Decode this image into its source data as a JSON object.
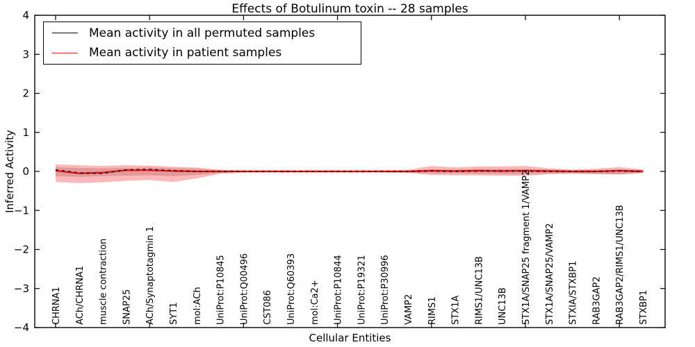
{
  "title": "Effects of Botulinum toxin -- 28 samples",
  "axes": {
    "x_label": "Cellular Entities",
    "y_label": "Inferred Activity",
    "y_tick_labels": [
      "4",
      "3",
      "2",
      "1",
      "0",
      "−1",
      "−2",
      "−3",
      "−4"
    ],
    "y_tick_values": [
      4,
      3,
      2,
      1,
      0,
      -1,
      -2,
      -3,
      -4
    ]
  },
  "legend": {
    "items": [
      {
        "label": "Mean activity in all permuted samples",
        "color": "#000000"
      },
      {
        "label": "Mean activity in patient samples",
        "color": "#ff0000"
      }
    ]
  },
  "chart_data": {
    "type": "line",
    "title": "Effects of Botulinum toxin -- 28 samples",
    "xlabel": "Cellular Entities",
    "ylabel": "Inferred Activity",
    "ylim": [
      -4,
      4
    ],
    "grid": false,
    "legend_position": "upper left",
    "categories": [
      "CHRNA1",
      "ACh/CHRNA1",
      "muscle contraction",
      "SNAP25",
      "ACh/Synaptotagmin 1",
      "SYT1",
      "mol:ACh",
      "UniProt:P10845",
      "UniProt:Q00496",
      "CST086",
      "UniProt:Q60393",
      "mol:Ca2+",
      "UniProt:P10844",
      "UniProt:P19321",
      "UniProt:P30996",
      "VAMP2",
      "RIMS1",
      "STX1A",
      "RIMS1/UNC13B",
      "UNC13B",
      "STX1A/SNAP25 fragment 1/VAMP2",
      "STX1A/SNAP25/VAMP2",
      "STXIA/STXBP1",
      "RAB3GAP2",
      "RAB3GAP2/RIMS1/UNC13B",
      "STXBP1"
    ],
    "x_major_tick_indices": [
      0,
      4,
      8,
      12,
      16,
      20,
      24
    ],
    "series": [
      {
        "name": "Mean activity in all permuted samples",
        "color": "#000000",
        "style": "dashed",
        "values": [
          0.04,
          -0.04,
          -0.05,
          0.04,
          0.05,
          0.02,
          0.0,
          0.0,
          0.0,
          0.0,
          0.0,
          0.0,
          0.0,
          0.0,
          0.0,
          0.0,
          0.01,
          0.0,
          0.01,
          0.01,
          0.01,
          0.0,
          0.0,
          0.0,
          0.01,
          0.0
        ]
      },
      {
        "name": "Mean activity in patient samples",
        "color": "#ff0000",
        "style": "solid",
        "values": [
          0.02,
          -0.05,
          -0.03,
          0.03,
          0.03,
          0.01,
          0.0,
          0.0,
          0.0,
          0.0,
          0.0,
          0.0,
          0.0,
          0.0,
          0.0,
          0.0,
          0.02,
          0.01,
          0.02,
          0.01,
          0.02,
          0.01,
          0.0,
          0.0,
          0.02,
          0.0
        ]
      }
    ],
    "bands": [
      {
        "name": "permuted-samples-range",
        "color": "#000000",
        "opacity": 0.16,
        "upper": [
          0.11,
          0.09,
          0.08,
          0.09,
          0.1,
          0.08,
          0.07,
          0.03,
          0.02,
          0.02,
          0.02,
          0.02,
          0.02,
          0.02,
          0.02,
          0.03,
          0.05,
          0.05,
          0.06,
          0.06,
          0.06,
          0.05,
          0.04,
          0.04,
          0.05,
          0.04
        ],
        "lower": [
          -0.12,
          -0.14,
          -0.12,
          -0.11,
          -0.1,
          -0.12,
          -0.09,
          -0.04,
          -0.02,
          -0.02,
          -0.02,
          -0.02,
          -0.02,
          -0.02,
          -0.02,
          -0.03,
          -0.05,
          -0.05,
          -0.06,
          -0.06,
          -0.07,
          -0.05,
          -0.06,
          -0.07,
          -0.07,
          -0.04
        ]
      },
      {
        "name": "patient-samples-range",
        "color": "#ff0000",
        "opacity": 0.28,
        "upper": [
          0.18,
          0.16,
          0.14,
          0.16,
          0.15,
          0.12,
          0.1,
          0.04,
          0.03,
          0.03,
          0.03,
          0.03,
          0.03,
          0.03,
          0.03,
          0.04,
          0.14,
          0.1,
          0.13,
          0.13,
          0.14,
          0.08,
          0.04,
          0.07,
          0.11,
          0.05
        ],
        "lower": [
          -0.27,
          -0.3,
          -0.28,
          -0.24,
          -0.22,
          -0.27,
          -0.18,
          -0.06,
          -0.03,
          -0.03,
          -0.03,
          -0.03,
          -0.03,
          -0.03,
          -0.03,
          -0.04,
          -0.09,
          -0.1,
          -0.1,
          -0.11,
          -0.11,
          -0.07,
          -0.05,
          -0.06,
          -0.08,
          -0.04
        ]
      }
    ]
  }
}
